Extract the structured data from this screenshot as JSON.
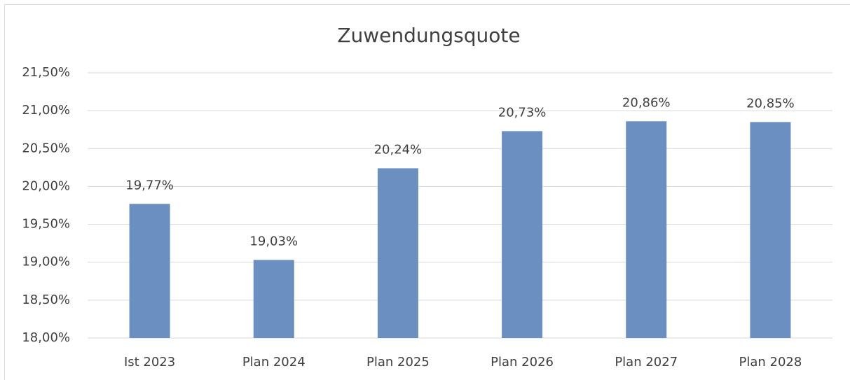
{
  "chart_data": {
    "type": "bar",
    "title": "Zuwendungsquote",
    "categories": [
      "Ist 2023",
      "Plan 2024",
      "Plan 2025",
      "Plan 2026",
      "Plan 2027",
      "Plan 2028"
    ],
    "values": [
      19.77,
      19.03,
      20.24,
      20.73,
      20.86,
      20.85
    ],
    "value_labels": [
      "19,77%",
      "19,03%",
      "20,24%",
      "20,73%",
      "20,86%",
      "20,85%"
    ],
    "color": "#6b8fc1",
    "ylim": [
      18,
      21.5
    ],
    "yticks": [
      {
        "value": 18,
        "label": "18,00%"
      },
      {
        "value": 18.5,
        "label": "18,50%"
      },
      {
        "value": 19,
        "label": "19,00%"
      },
      {
        "value": 19.5,
        "label": "19,50%"
      },
      {
        "value": 20,
        "label": "20,00%"
      },
      {
        "value": 20.5,
        "label": "20,50%"
      },
      {
        "value": 21,
        "label": "21,00%"
      },
      {
        "value": 21.5,
        "label": "21,50%"
      }
    ],
    "grid": true
  }
}
